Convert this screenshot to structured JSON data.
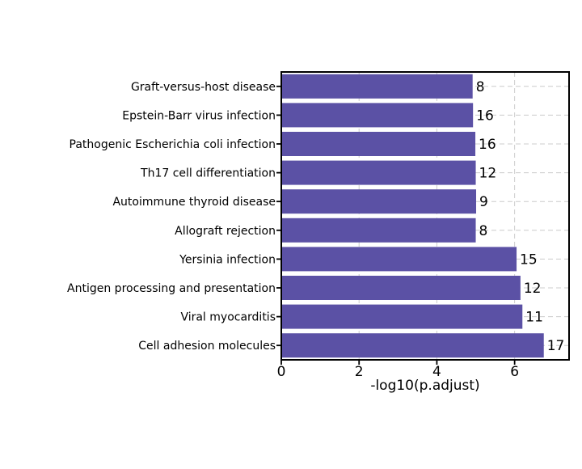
{
  "chart_data": {
    "type": "bar",
    "orientation": "horizontal",
    "title": "",
    "xlabel": "-log10(p.adjust)",
    "ylabel": "",
    "categories": [
      "Graft-versus-host disease",
      "Epstein-Barr virus infection",
      "Pathogenic Escherichia coli infection",
      "Th17 cell differentiation",
      "Autoimmune thyroid disease",
      "Allograft rejection",
      "Yersinia infection",
      "Antigen processing and presentation",
      "Viral myocarditis",
      "Cell adhesion molecules"
    ],
    "values": [
      4.92,
      4.93,
      4.99,
      5.0,
      5.01,
      5.0,
      6.05,
      6.15,
      6.2,
      6.75
    ],
    "bar_count_labels": [
      "8",
      "16",
      "16",
      "12",
      "9",
      "8",
      "15",
      "12",
      "11",
      "17"
    ],
    "xlim": [
      0,
      7.4
    ],
    "xticks": [
      0,
      2,
      4,
      6
    ],
    "grid": "dashed",
    "legend": "none",
    "colors": {
      "bar": "#5B51A5",
      "grid": "#cccccc",
      "spine": "#000000",
      "text": "#000000"
    }
  }
}
